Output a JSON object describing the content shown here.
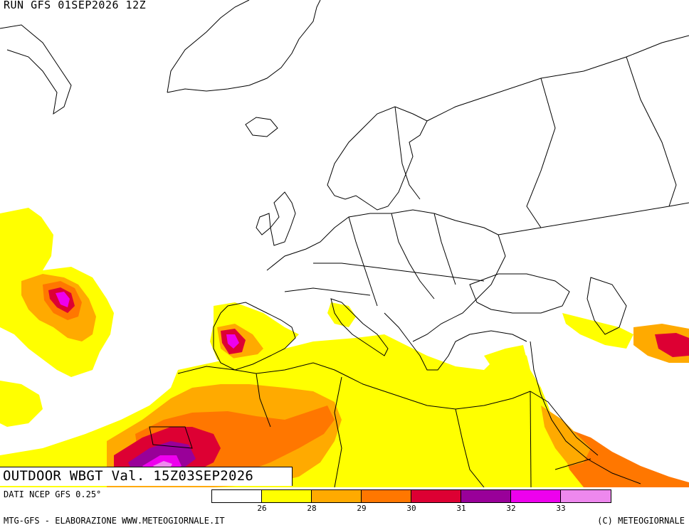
{
  "header": {
    "run_label": "RUN GFS 01SEP2026 12Z"
  },
  "map": {
    "product_label": "OUTDOOR WBGT Val. 15Z03SEP2026",
    "land_color": "#ffffff",
    "border_color": "#000000"
  },
  "footer": {
    "source_label": "DATI NCEP GFS 0.25°",
    "credit_left": "MTG-GFS - ELABORAZIONE WWW.METEOGIORNALE.IT",
    "credit_right": "(C) METEOGIORNALE"
  },
  "legend": {
    "colors": [
      "#ffffff",
      "#ffff00",
      "#ffaa00",
      "#ff7700",
      "#dd0033",
      "#990099",
      "#ee00ee",
      "#ee88ee"
    ],
    "ticks": [
      "26",
      "28",
      "29",
      "30",
      "31",
      "32",
      "33"
    ]
  }
}
